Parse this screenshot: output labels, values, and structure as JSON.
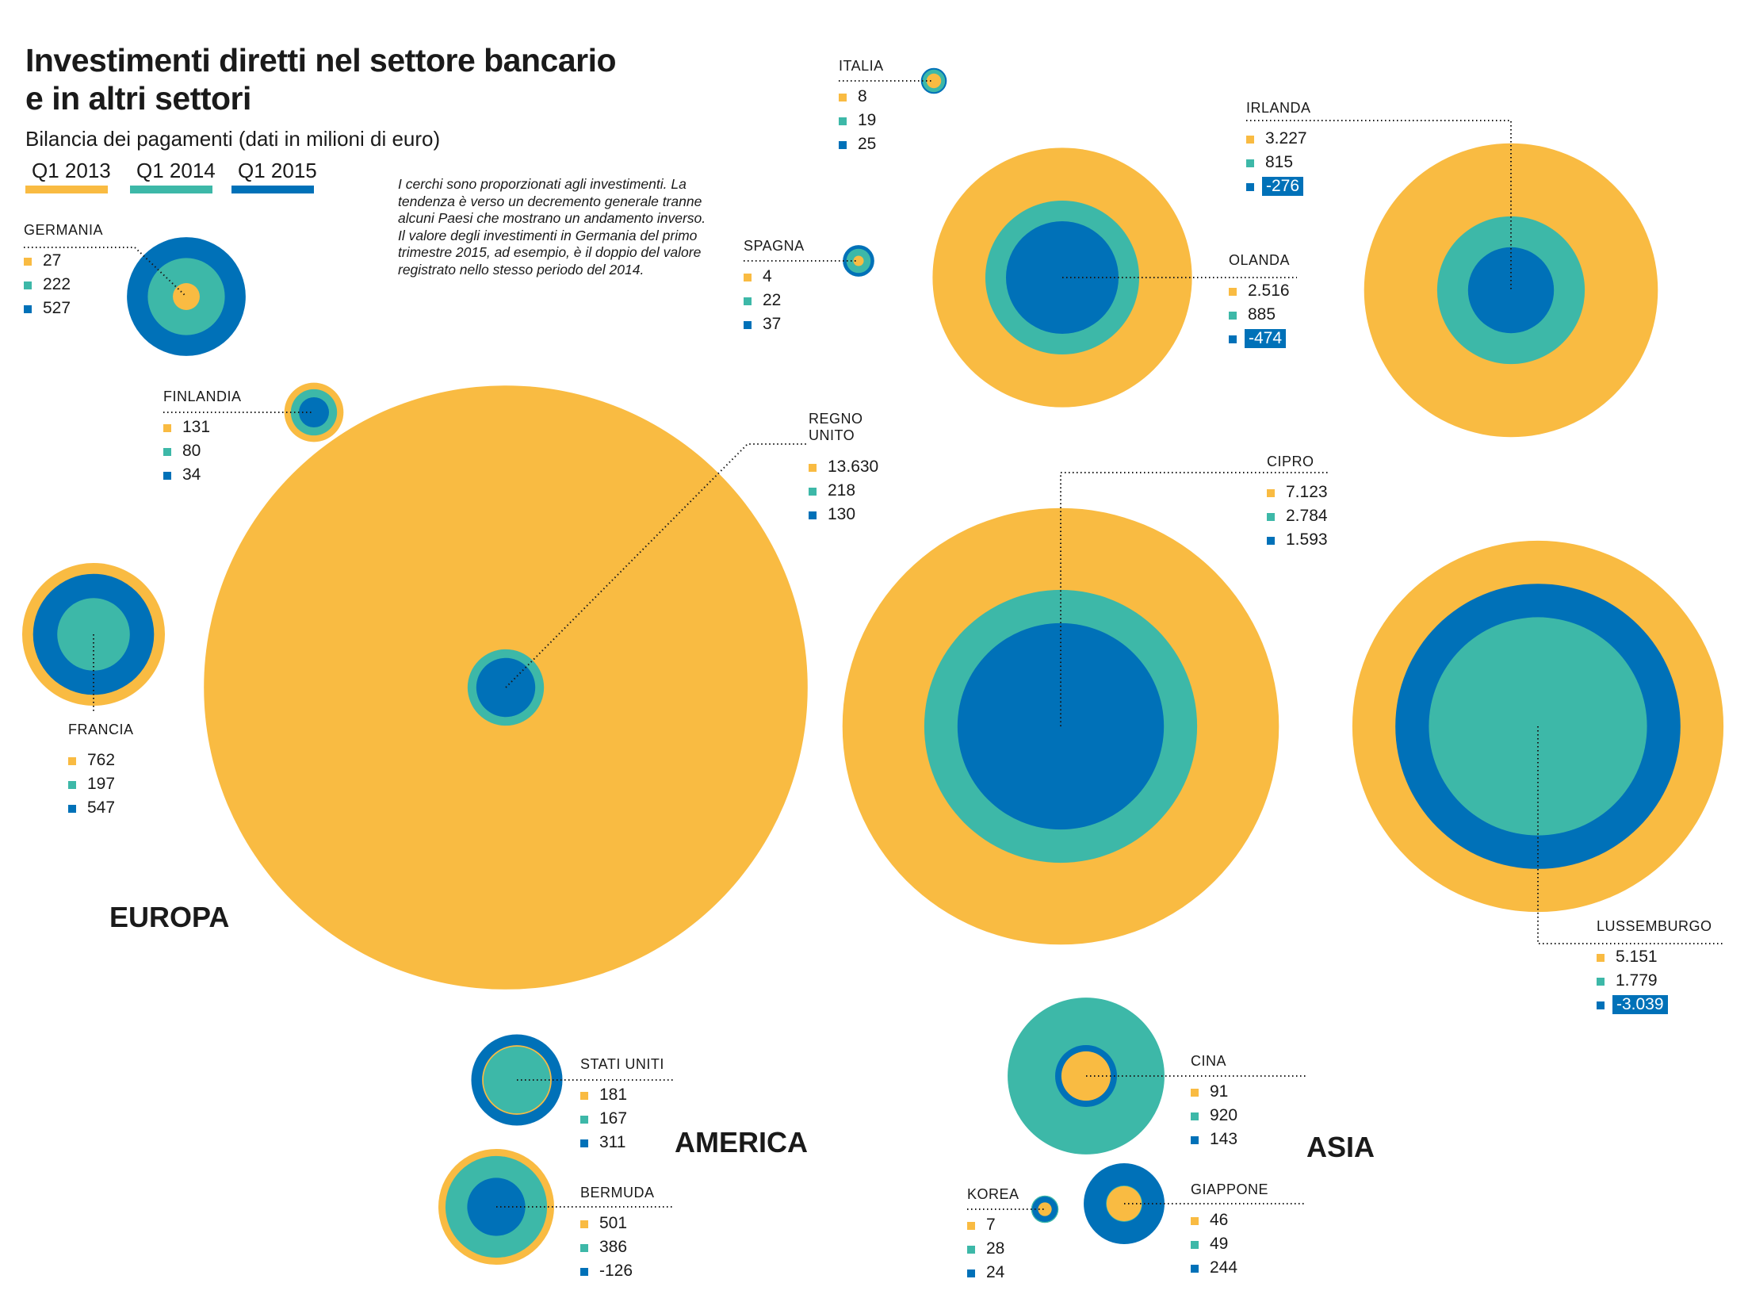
{
  "colors": {
    "q1_2013": "#f9bb42",
    "q1_2014": "#3db8a8",
    "q1_2015": "#0071b8"
  },
  "title": "Investimenti diretti nel settore bancario e in altri settori",
  "subtitle": "Bilancia dei pagamenti (dati in milioni di euro)",
  "legend": [
    {
      "label": "Q1 2013",
      "color": "#f9bb42"
    },
    {
      "label": "Q1 2014",
      "color": "#3db8a8"
    },
    {
      "label": "Q1 2015",
      "color": "#0071b8"
    }
  ],
  "note": "I cerchi sono proporzionati agli investimenti. La tendenza è verso un decremento generale tranne alcuni Paesi che mostrano un andamento inverso. Il valore degli investimenti in Germania del primo trimestre 2015, ad esempio, è il doppio del valore registrato nello stesso periodo del  2014.",
  "regions": {
    "europa": "EUROPA",
    "america": "AMERICA",
    "asia": "ASIA"
  },
  "chart_data": {
    "type": "bubble",
    "series_names": [
      "Q1 2013",
      "Q1 2014",
      "Q1 2015"
    ],
    "countries": [
      {
        "name": "GERMANIA",
        "region": "EUROPA",
        "labels": [
          "27",
          "222",
          "527"
        ],
        "values": [
          27,
          222,
          527
        ]
      },
      {
        "name": "FINLANDIA",
        "region": "EUROPA",
        "labels": [
          "131",
          "80",
          "34"
        ],
        "values": [
          131,
          80,
          34
        ]
      },
      {
        "name": "FRANCIA",
        "region": "EUROPA",
        "labels": [
          "762",
          "197",
          "547"
        ],
        "values": [
          762,
          197,
          547
        ]
      },
      {
        "name": "REGNO UNITO",
        "region": "EUROPA",
        "labels": [
          "13.630",
          "218",
          "130"
        ],
        "values": [
          13630,
          218,
          130
        ]
      },
      {
        "name": "ITALIA",
        "region": "EUROPA",
        "labels": [
          "8",
          "19",
          "25"
        ],
        "values": [
          8,
          19,
          25
        ]
      },
      {
        "name": "SPAGNA",
        "region": "EUROPA",
        "labels": [
          "4",
          "22",
          "37"
        ],
        "values": [
          4,
          22,
          37
        ]
      },
      {
        "name": "OLANDA",
        "region": "EUROPA",
        "labels": [
          "2.516",
          "885",
          "-474"
        ],
        "values": [
          2516,
          885,
          -474
        ]
      },
      {
        "name": "IRLANDA",
        "region": "EUROPA",
        "labels": [
          "3.227",
          "815",
          "-276"
        ],
        "values": [
          3227,
          815,
          -276
        ]
      },
      {
        "name": "CIPRO",
        "region": "EUROPA",
        "labels": [
          "7.123",
          "2.784",
          "1.593"
        ],
        "values": [
          7123,
          2784,
          1593
        ]
      },
      {
        "name": "LUSSEMBURGO",
        "region": "EUROPA",
        "labels": [
          "5.151",
          "1.779",
          "-3.039"
        ],
        "values": [
          5151,
          1779,
          -3039
        ]
      },
      {
        "name": "STATI UNITI",
        "region": "AMERICA",
        "labels": [
          "181",
          "167",
          "311"
        ],
        "values": [
          181,
          167,
          311
        ]
      },
      {
        "name": "BERMUDA",
        "region": "AMERICA",
        "labels": [
          "501",
          "386",
          "-126"
        ],
        "values": [
          501,
          386,
          -126
        ]
      },
      {
        "name": "CINA",
        "region": "ASIA",
        "labels": [
          "91",
          "920",
          "143"
        ],
        "values": [
          91,
          920,
          143
        ]
      },
      {
        "name": "KOREA",
        "region": "ASIA",
        "labels": [
          "7",
          "28",
          "24"
        ],
        "values": [
          7,
          28,
          24
        ]
      },
      {
        "name": "GIAPPONE",
        "region": "ASIA",
        "labels": [
          "46",
          "49",
          "244"
        ],
        "values": [
          46,
          49,
          244
        ]
      }
    ]
  }
}
